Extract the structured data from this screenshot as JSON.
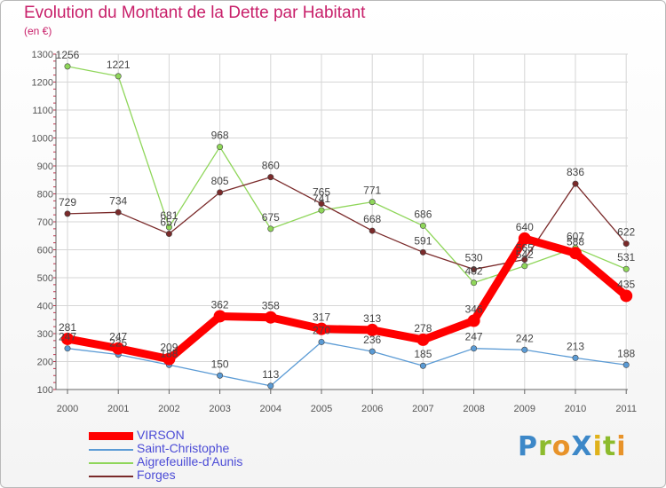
{
  "header": {
    "title": "Evolution du Montant de la Dette par Habitant",
    "subtitle": "(en €)"
  },
  "logo": {
    "text": "ProXiti",
    "letters": [
      {
        "ch": "P",
        "color": "#3d88c8"
      },
      {
        "ch": "r",
        "color": "#8dbb2d"
      },
      {
        "ch": "o",
        "color": "#e8932a"
      },
      {
        "ch": "X",
        "color": "#3d88c8"
      },
      {
        "ch": "i",
        "color": "#e0b21b"
      },
      {
        "ch": "t",
        "color": "#8dbb2d"
      },
      {
        "ch": "i",
        "color": "#e8932a"
      }
    ]
  },
  "chart_data": {
    "type": "line",
    "title": "Evolution du Montant de la Dette par Habitant",
    "subtitle": "(en €)",
    "categories": [
      "2000",
      "2001",
      "2002",
      "2003",
      "2004",
      "2005",
      "2006",
      "2007",
      "2008",
      "2009",
      "2010",
      "2011"
    ],
    "ylim": [
      100,
      1300
    ],
    "yticks": [
      100,
      200,
      300,
      400,
      500,
      600,
      700,
      800,
      900,
      1000,
      1100,
      1200,
      1300
    ],
    "grid": true,
    "legend_position": "bottom-left",
    "series": [
      {
        "name": "VIRSON",
        "color": "#ff0000",
        "values": [
          281,
          247,
          209,
          362,
          358,
          317,
          313,
          278,
          346,
          640,
          588,
          435
        ]
      },
      {
        "name": "Saint-Christophe",
        "color": "#5b9bd5",
        "values": [
          247,
          225,
          188,
          150,
          113,
          270,
          236,
          185,
          247,
          242,
          213,
          188
        ]
      },
      {
        "name": "Aigrefeuille-d'Aunis",
        "color": "#8fd65a",
        "values": [
          1256,
          1221,
          681,
          968,
          675,
          741,
          771,
          686,
          482,
          542,
          607,
          531
        ]
      },
      {
        "name": "Forges",
        "color": "#7a2a2a",
        "values": [
          729,
          734,
          657,
          805,
          860,
          765,
          668,
          591,
          530,
          565,
          836,
          622
        ]
      }
    ]
  }
}
